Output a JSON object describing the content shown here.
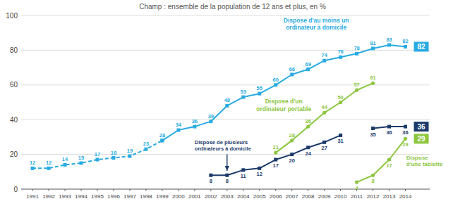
{
  "chart_data": {
    "type": "line",
    "subtitle": "Champ : ensemble de la population de 12 ans et plus, en %",
    "x": [
      1991,
      1992,
      1993,
      1994,
      1995,
      1996,
      1997,
      1998,
      1999,
      2000,
      2001,
      2002,
      2003,
      2004,
      2005,
      2006,
      2007,
      2008,
      2009,
      2010,
      2011,
      2012,
      2013,
      2014
    ],
    "xlim": [
      1990.3,
      2015.5
    ],
    "xticks": [
      1991,
      1992,
      1993,
      1994,
      1995,
      1996,
      1997,
      1998,
      1999,
      2000,
      2001,
      2002,
      2003,
      2004,
      2005,
      2006,
      2007,
      2008,
      2009,
      2010,
      2011,
      2012,
      2013,
      2014
    ],
    "ylim": [
      0,
      100
    ],
    "yticks": [
      0,
      20,
      40,
      60,
      80,
      100
    ],
    "grid": true,
    "data_labels": true,
    "series": [
      {
        "color": "#29ABE2",
        "marker": "square",
        "line_style": "dashed",
        "values": [
          12,
          12,
          14,
          15,
          17,
          18,
          19,
          23,
          28,
          null,
          null,
          null,
          null,
          null,
          null,
          null,
          null,
          null,
          null,
          null,
          null,
          null,
          null,
          null
        ]
      },
      {
        "name": "Dispose d'au moins un\nordinateur à domicile",
        "color": "#29ABE2",
        "marker": "square",
        "line_style": "solid",
        "values": [
          null,
          null,
          null,
          null,
          null,
          null,
          null,
          null,
          28,
          34,
          36,
          39,
          48,
          53,
          55,
          60,
          66,
          69,
          74,
          76,
          78,
          81,
          83,
          82
        ]
      },
      {
        "name": "Dispose d'un\nordinateur portable",
        "color": "#8DC63F",
        "marker": "circle",
        "line_style": "solid",
        "values": [
          null,
          null,
          null,
          null,
          null,
          null,
          null,
          null,
          null,
          null,
          null,
          null,
          null,
          null,
          null,
          21,
          28,
          36,
          44,
          50,
          57,
          61,
          null,
          null
        ]
      },
      {
        "name": "Dispose de plusieurs\nordinateurs à domicile",
        "color": "#1B3A6B",
        "marker": "square",
        "line_style": "solid",
        "values": [
          null,
          null,
          null,
          null,
          null,
          null,
          null,
          null,
          null,
          null,
          null,
          8,
          8,
          11,
          12,
          17,
          20,
          24,
          27,
          31,
          null,
          35,
          36,
          36
        ]
      },
      {
        "name": "Dispose\nd'une tablette",
        "color": "#8DC63F",
        "marker": "circle",
        "line_style": "solid",
        "values": [
          null,
          null,
          null,
          null,
          null,
          null,
          null,
          null,
          null,
          null,
          null,
          null,
          null,
          null,
          null,
          null,
          null,
          null,
          null,
          null,
          4,
          8,
          17,
          29
        ]
      }
    ]
  }
}
